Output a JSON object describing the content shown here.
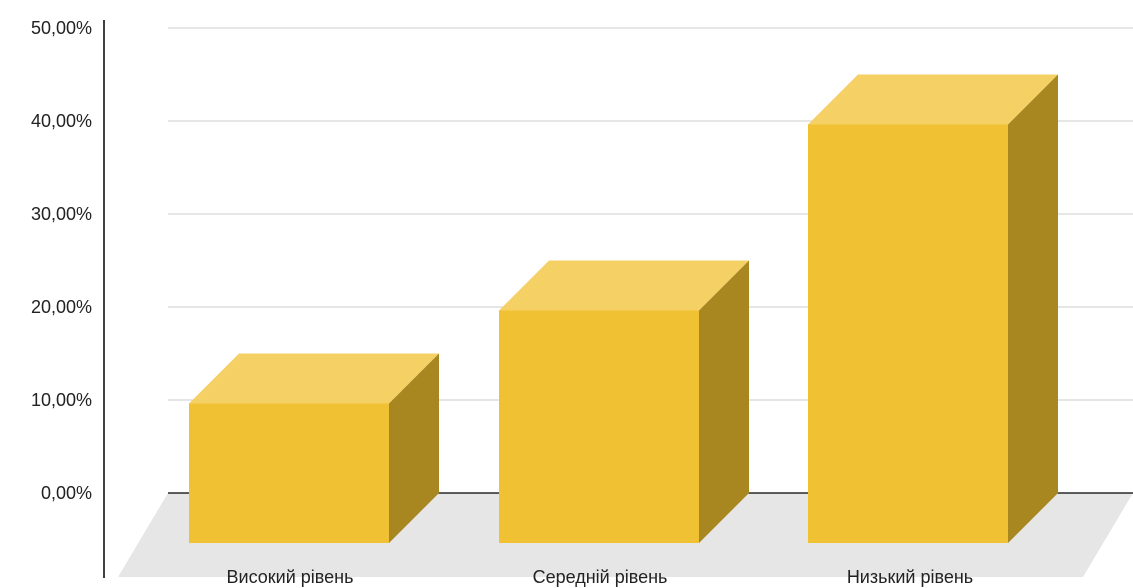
{
  "chart_data": {
    "type": "bar",
    "style": "3d-column",
    "categories": [
      "Високий рівень",
      "Середній рівень",
      "Низький рівень"
    ],
    "values": [
      15,
      25,
      45
    ],
    "y_ticks": [
      "0,00%",
      "10,00%",
      "20,00%",
      "30,00%",
      "40,00%",
      "50,00%"
    ],
    "ylim": [
      0,
      50
    ],
    "grid": true,
    "legend": "none",
    "title": "",
    "xlabel": "",
    "ylabel": "",
    "colors": {
      "front": "#f0c233",
      "top": "#f5d064",
      "side": "#a88620",
      "floor": "#e6e6e6",
      "grid": "#cccccc",
      "axis": "#000000"
    }
  }
}
